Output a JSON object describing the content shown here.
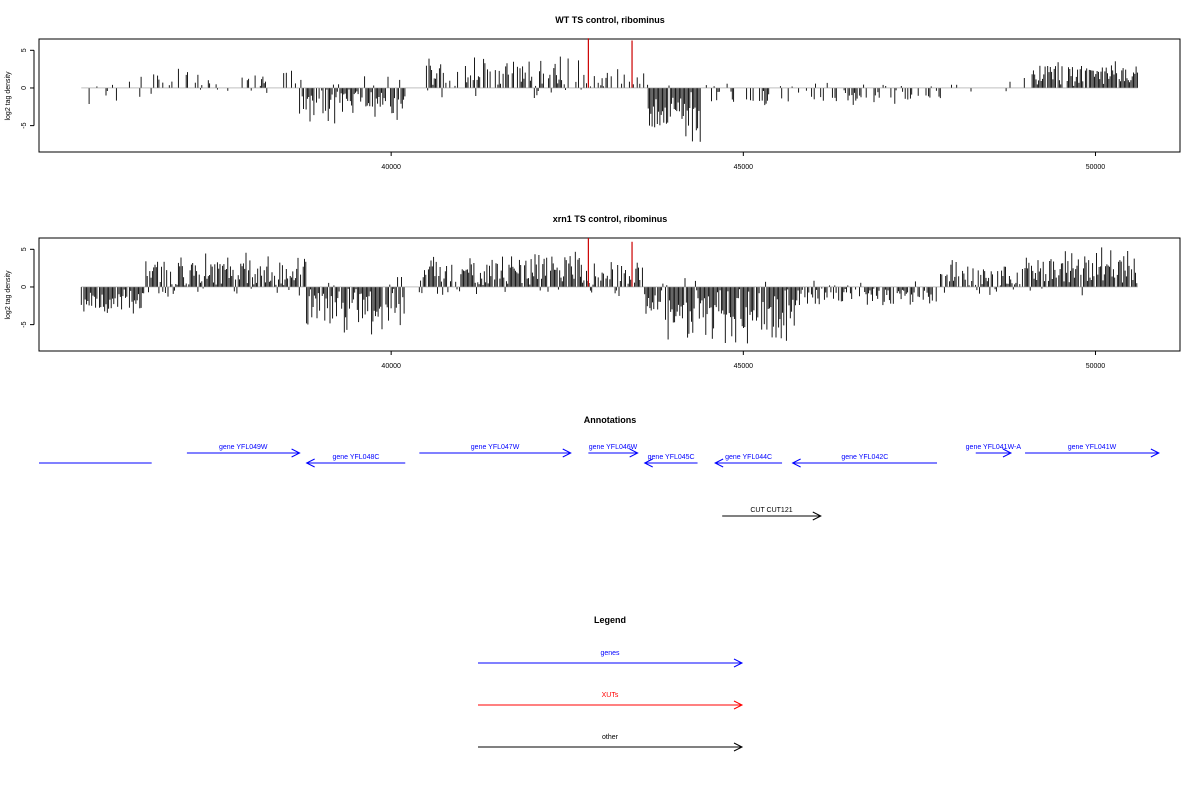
{
  "colors": {
    "gene": "#0000ff",
    "xut": "#ff0000",
    "other": "#000000",
    "bar": "#000000",
    "highlight": "#cc0000",
    "baseline": "#999999"
  },
  "chart_data": [
    {
      "type": "bar",
      "title": "WT TS control, ribominus",
      "ylabel": "log2 tag density",
      "xlim": [
        35000,
        51200
      ],
      "ylim": [
        -8.5,
        6.5
      ],
      "x_ticks": [
        40000,
        45000,
        50000
      ],
      "y_ticks": [
        -5,
        0,
        5
      ],
      "grid": false,
      "highlight_x": [
        42800,
        43420
      ],
      "highlight_values": [
        6.6,
        6.3
      ],
      "segments": [
        {
          "start": 35600,
          "end": 36500,
          "base": -0.3,
          "amp": 2.2,
          "density": 0.2,
          "seed": 11
        },
        {
          "start": 36500,
          "end": 38700,
          "base": 0.7,
          "amp": 2.0,
          "density": 0.35,
          "seed": 12
        },
        {
          "start": 38700,
          "end": 40200,
          "base": -1.8,
          "amp": 3.6,
          "density": 0.8,
          "seed": 13
        },
        {
          "start": 40500,
          "end": 42700,
          "base": 1.5,
          "amp": 3.2,
          "density": 0.7,
          "seed": 14
        },
        {
          "start": 42700,
          "end": 43650,
          "base": 1.0,
          "amp": 2.0,
          "density": 0.4,
          "seed": 15
        },
        {
          "start": 43650,
          "end": 44400,
          "base": -3.8,
          "amp": 4.5,
          "density": 1.0,
          "seed": 16
        },
        {
          "start": 44400,
          "end": 47900,
          "base": -0.8,
          "amp": 2.0,
          "density": 0.45,
          "seed": 17
        },
        {
          "start": 47900,
          "end": 49100,
          "base": 0.4,
          "amp": 1.5,
          "density": 0.12,
          "seed": 18
        },
        {
          "start": 49100,
          "end": 50600,
          "base": 1.8,
          "amp": 2.2,
          "density": 0.9,
          "seed": 19
        }
      ]
    },
    {
      "type": "bar",
      "title": "xrn1 TS control, ribominus",
      "ylabel": "log2 tag density",
      "xlim": [
        35000,
        51200
      ],
      "ylim": [
        -8.5,
        6.5
      ],
      "x_ticks": [
        40000,
        45000,
        50000
      ],
      "y_ticks": [
        -5,
        0,
        5
      ],
      "grid": false,
      "highlight_x": [
        42800,
        43420
      ],
      "highlight_values": [
        6.5,
        6.0
      ],
      "segments": [
        {
          "start": 35600,
          "end": 36500,
          "base": -1.6,
          "amp": 2.4,
          "density": 1.0,
          "seed": 21
        },
        {
          "start": 36500,
          "end": 38800,
          "base": 1.7,
          "amp": 3.2,
          "density": 1.0,
          "seed": 22
        },
        {
          "start": 38800,
          "end": 40200,
          "base": -2.4,
          "amp": 4.0,
          "density": 1.0,
          "seed": 23
        },
        {
          "start": 40400,
          "end": 42700,
          "base": 1.8,
          "amp": 3.4,
          "density": 1.0,
          "seed": 24
        },
        {
          "start": 42700,
          "end": 43600,
          "base": 1.2,
          "amp": 2.6,
          "density": 0.9,
          "seed": 25
        },
        {
          "start": 43600,
          "end": 45800,
          "base": -3.4,
          "amp": 4.8,
          "density": 1.0,
          "seed": 26
        },
        {
          "start": 45800,
          "end": 47800,
          "base": -0.9,
          "amp": 2.0,
          "density": 0.8,
          "seed": 27
        },
        {
          "start": 47800,
          "end": 49000,
          "base": 1.2,
          "amp": 2.4,
          "density": 0.9,
          "seed": 28
        },
        {
          "start": 49000,
          "end": 50600,
          "base": 2.2,
          "amp": 3.4,
          "density": 1.0,
          "seed": 29
        }
      ]
    }
  ],
  "annotations": {
    "title": "Annotations",
    "features": [
      {
        "label": "",
        "start": 35000,
        "end": 36600,
        "strand": "-",
        "type": "gene",
        "row": 1
      },
      {
        "label": "gene YFL049W",
        "start": 37100,
        "end": 38700,
        "strand": "+",
        "type": "gene",
        "row": 0
      },
      {
        "label": "gene YFL048C",
        "start": 38800,
        "end": 40200,
        "strand": "-",
        "type": "gene",
        "row": 1
      },
      {
        "label": "gene YFL047W",
        "start": 40400,
        "end": 42550,
        "strand": "+",
        "type": "gene",
        "row": 0
      },
      {
        "label": "gene YFL046W",
        "start": 42800,
        "end": 43500,
        "strand": "+",
        "type": "gene",
        "row": 0
      },
      {
        "label": "gene YFL045C",
        "start": 43600,
        "end": 44350,
        "strand": "-",
        "type": "gene",
        "row": 1
      },
      {
        "label": "gene YFL044C",
        "start": 44600,
        "end": 45550,
        "strand": "-",
        "type": "gene",
        "row": 1
      },
      {
        "label": "gene YFL042C",
        "start": 45700,
        "end": 47750,
        "strand": "-",
        "type": "gene",
        "row": 1
      },
      {
        "label": "gene YFL041W-A",
        "start": 48300,
        "end": 48800,
        "strand": "+",
        "type": "gene",
        "row": 0
      },
      {
        "label": "gene YFL041W",
        "start": 49000,
        "end": 50900,
        "strand": "+",
        "type": "gene",
        "row": 0
      },
      {
        "label": "CUT CUT121",
        "start": 44700,
        "end": 46100,
        "strand": "+",
        "type": "other",
        "row": 2
      }
    ]
  },
  "legend": {
    "title": "Legend",
    "items": [
      {
        "label": "genes",
        "type": "gene"
      },
      {
        "label": "XUTs",
        "type": "xut"
      },
      {
        "label": "other",
        "type": "other"
      }
    ]
  }
}
